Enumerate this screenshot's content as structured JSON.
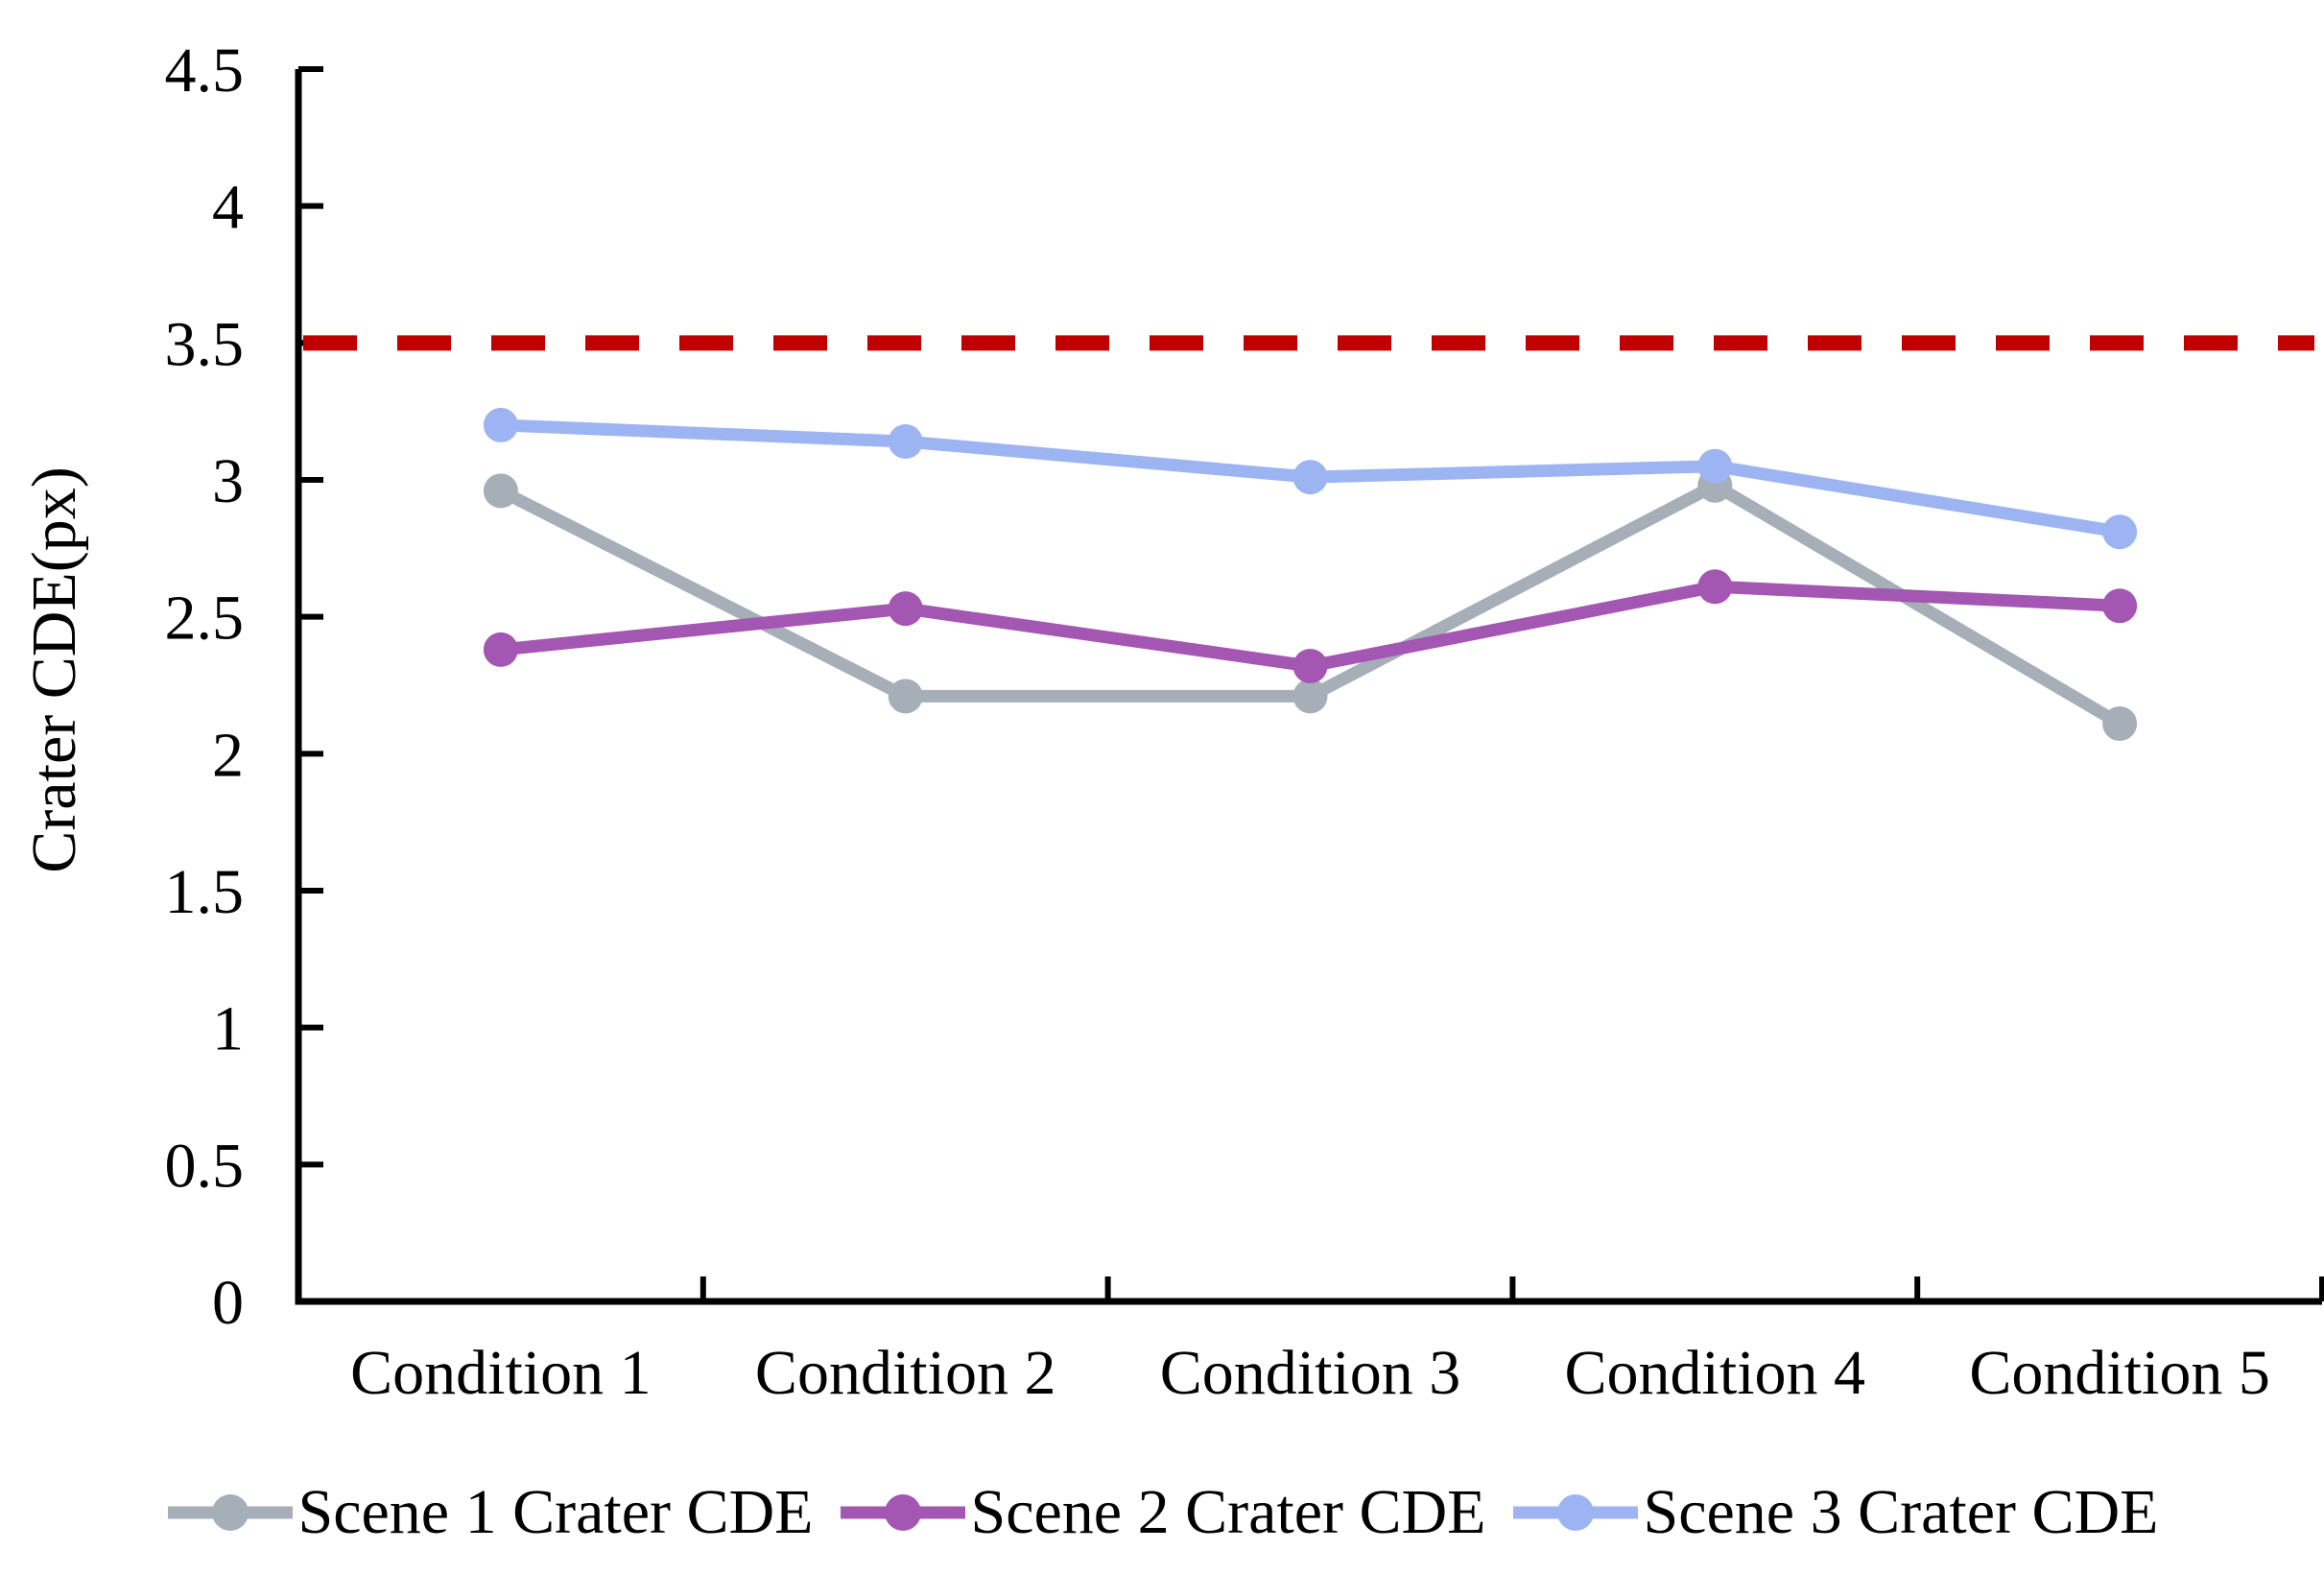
{
  "chart_data": {
    "type": "line",
    "title": "",
    "xlabel": "",
    "ylabel": "Crater CDE(px)",
    "ylim": [
      0,
      4.5
    ],
    "ytick_step": 0.5,
    "yticks": [
      "0",
      "0.5",
      "1",
      "1.5",
      "2",
      "2.5",
      "3",
      "3.5",
      "4",
      "4.5"
    ],
    "categories": [
      "Condition 1",
      "Condition 2",
      "Condition 3",
      "Condition 4",
      "Condition 5"
    ],
    "series": [
      {
        "name": "Scene 1 Crater CDE",
        "color": "#a6aeb8",
        "values": [
          2.96,
          2.21,
          2.21,
          2.98,
          2.11
        ]
      },
      {
        "name": "Scene 2 Crater CDE",
        "color": "#a356b2",
        "values": [
          2.38,
          2.53,
          2.32,
          2.61,
          2.54
        ]
      },
      {
        "name": "Scene 3 Crater CDE",
        "color": "#9db4f2",
        "values": [
          3.2,
          3.14,
          3.01,
          3.05,
          2.81
        ]
      }
    ],
    "reference_line": {
      "value": 3.5,
      "color": "#c00000",
      "style": "dashed"
    },
    "legend_position": "bottom",
    "grid": false,
    "axis_color": "#000000"
  }
}
